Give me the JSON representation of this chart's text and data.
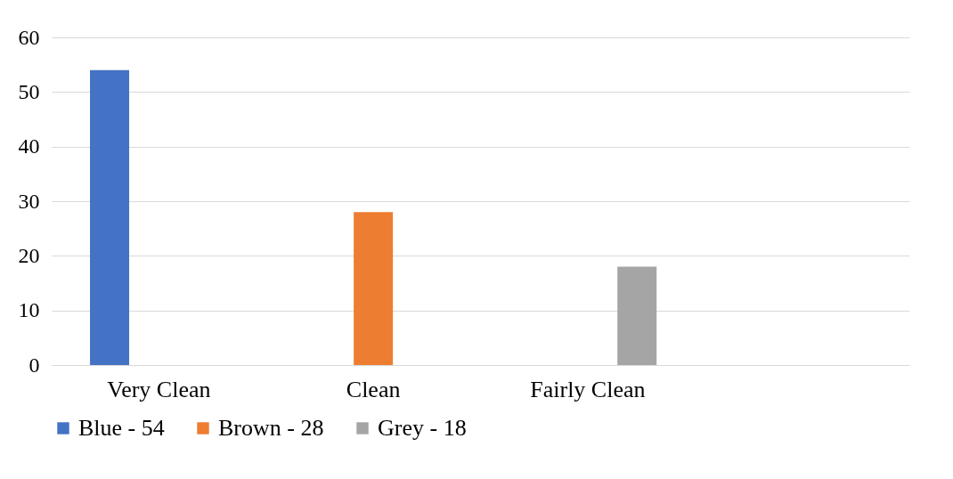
{
  "chart_data": {
    "type": "bar",
    "categories": [
      "Very Clean",
      "Clean",
      "Fairly Clean",
      null
    ],
    "series": [
      {
        "name": "Blue - 54",
        "color": "#4472c4",
        "values": [
          54,
          null,
          null,
          null
        ]
      },
      {
        "name": "Brown - 28",
        "color": "#ed7d31",
        "values": [
          null,
          28,
          null,
          null
        ]
      },
      {
        "name": "Grey - 18",
        "color": "#a5a5a5",
        "values": [
          null,
          null,
          18,
          null
        ]
      }
    ],
    "ylim": [
      0,
      60
    ],
    "yticks": [
      0,
      10,
      20,
      30,
      40,
      50,
      60
    ],
    "grid": "y",
    "legend": "bottom"
  }
}
